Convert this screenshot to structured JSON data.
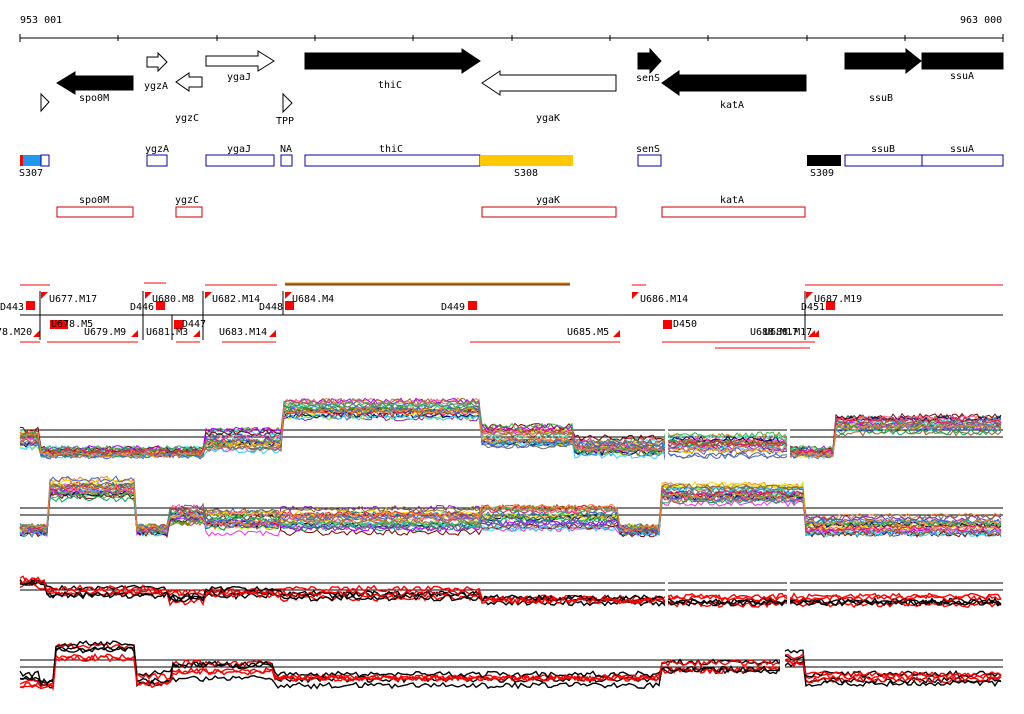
{
  "ruler": {
    "start_label": "953 001",
    "end_label": "963 000"
  },
  "genes": [
    {
      "name": "spo0M",
      "strand": "-",
      "fill": "#000000"
    },
    {
      "name": "ygzA",
      "strand": "+",
      "fill": "#ffffff"
    },
    {
      "name": "ygzC",
      "strand": "-",
      "fill": "#ffffff"
    },
    {
      "name": "ygaJ",
      "strand": "+",
      "fill": "#ffffff"
    },
    {
      "name": "TPP",
      "strand": "+",
      "fill": "#ffffff"
    },
    {
      "name": "thiC",
      "strand": "+",
      "fill": "#000000"
    },
    {
      "name": "ygaK",
      "strand": "-",
      "fill": "#ffffff"
    },
    {
      "name": "senS",
      "strand": "+",
      "fill": "#000000"
    },
    {
      "name": "katA",
      "strand": "-",
      "fill": "#000000"
    },
    {
      "name": "ssuB",
      "strand": "+",
      "fill": "#000000"
    },
    {
      "name": "ssuA",
      "strand": "+",
      "fill": "#000000"
    }
  ],
  "plus_track_labels": [
    "ygzA",
    "ygaJ",
    "NA",
    "thiC",
    "senS",
    "ssuB",
    "ssuA"
  ],
  "segments": [
    {
      "name": "S307",
      "color": "#2196f3"
    },
    {
      "name": "S308",
      "color": "#ffc800"
    },
    {
      "name": "S309",
      "color": "#000000"
    }
  ],
  "minus_track_labels": [
    "spo0M",
    "ygzC",
    "ygaK",
    "katA"
  ],
  "upper_features": [
    "D443",
    "U677.M17",
    "D446",
    "U680.M8",
    "U682.M14",
    "D448",
    "U684.M4",
    "D449",
    "U686.M14",
    "D451",
    "U687.M19"
  ],
  "lower_features": [
    "78.M20",
    "U678.M5",
    "U679.M9",
    "U681.M3",
    "D447",
    "U683.M14",
    "U685.M5",
    "D450",
    "U688.M17"
  ],
  "colors": {
    "feature_red": "#ff0000",
    "gene_outline_blue": "#0000aa",
    "track_red": "#cc0000"
  }
}
